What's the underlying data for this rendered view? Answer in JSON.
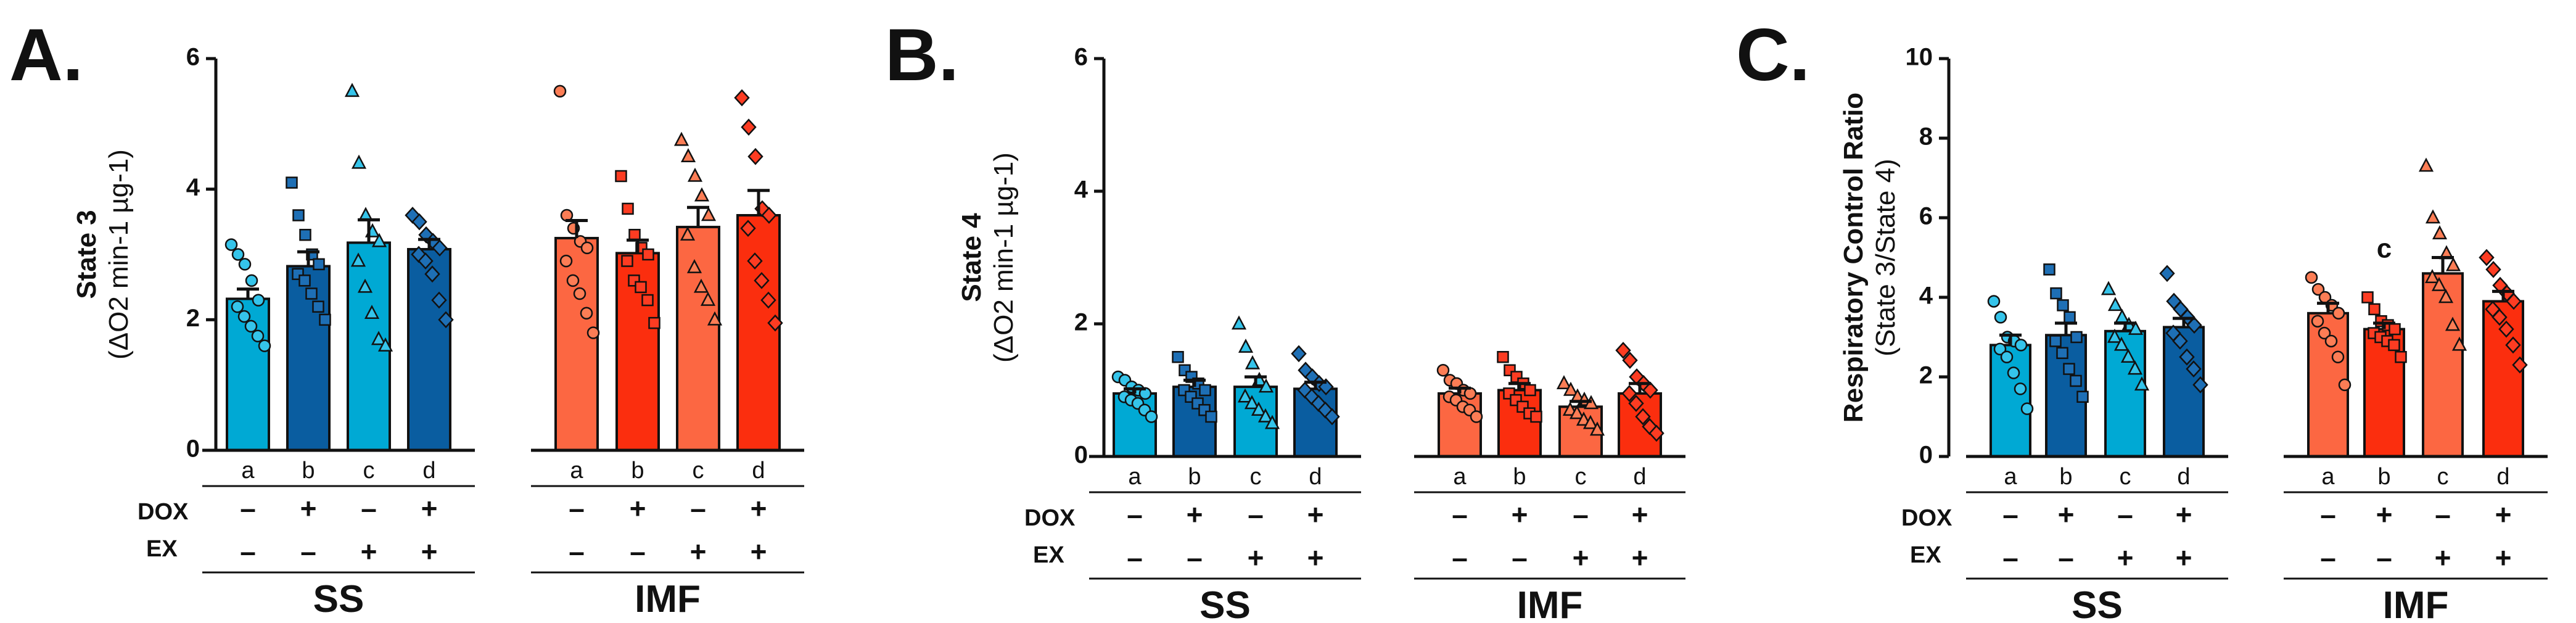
{
  "chart_data": [
    {
      "type": "bar",
      "panel_label": "A.",
      "ylabel": "State 3",
      "ylabel_sub": "(ΔO2 min-1 µg-1)",
      "ylim": [
        0,
        6
      ],
      "yticks": [
        "0",
        "2",
        "4",
        "6"
      ],
      "groups": [
        {
          "name": "SS",
          "categories": [
            "a",
            "b",
            "c",
            "d"
          ],
          "means": [
            2.32,
            2.82,
            3.18,
            3.08
          ],
          "sem": [
            0.15,
            0.22,
            0.35,
            0.15
          ],
          "points": [
            [
              3.15,
              3.0,
              2.85,
              2.6,
              2.3,
              2.2,
              2.05,
              1.9,
              1.75,
              1.6
            ],
            [
              4.1,
              3.6,
              3.3,
              3.0,
              2.85,
              2.7,
              2.6,
              2.4,
              2.2,
              2.0
            ],
            [
              5.5,
              4.4,
              3.6,
              3.35,
              3.2,
              2.9,
              2.5,
              2.1,
              1.7,
              1.6
            ],
            [
              3.6,
              3.5,
              3.3,
              3.2,
              3.1,
              3.0,
              2.9,
              2.7,
              2.3,
              2.0
            ]
          ]
        },
        {
          "name": "IMF",
          "categories": [
            "a",
            "b",
            "c",
            "d"
          ],
          "means": [
            3.25,
            3.02,
            3.42,
            3.6
          ],
          "sem": [
            0.27,
            0.2,
            0.3,
            0.38
          ],
          "points": [
            [
              5.5,
              3.6,
              3.4,
              3.2,
              3.1,
              2.9,
              2.6,
              2.4,
              2.1,
              1.8
            ],
            [
              4.2,
              3.7,
              3.3,
              3.1,
              3.0,
              2.9,
              2.6,
              2.5,
              2.3,
              1.95
            ],
            [
              4.75,
              4.5,
              4.2,
              3.9,
              3.6,
              3.3,
              2.8,
              2.5,
              2.3,
              2.0
            ],
            [
              5.4,
              4.95,
              4.5,
              3.7,
              3.6,
              3.4,
              2.9,
              2.6,
              2.3,
              1.95
            ]
          ]
        }
      ]
    },
    {
      "type": "bar",
      "panel_label": "B.",
      "ylabel": "State 4",
      "ylabel_sub": "(ΔO2 min-1 µg-1)",
      "ylim": [
        0,
        6
      ],
      "yticks": [
        "0",
        "2",
        "4",
        "6"
      ],
      "groups": [
        {
          "name": "SS",
          "categories": [
            "a",
            "b",
            "c",
            "d"
          ],
          "means": [
            0.95,
            1.05,
            1.05,
            1.02
          ],
          "sem": [
            0.07,
            0.1,
            0.15,
            0.1
          ],
          "points": [
            [
              1.2,
              1.15,
              1.05,
              1.0,
              0.95,
              0.9,
              0.85,
              0.8,
              0.7,
              0.6
            ],
            [
              1.5,
              1.3,
              1.2,
              1.1,
              1.0,
              1.0,
              0.9,
              0.8,
              0.7,
              0.6
            ],
            [
              2.0,
              1.65,
              1.4,
              1.15,
              1.05,
              0.9,
              0.8,
              0.7,
              0.6,
              0.5
            ],
            [
              1.55,
              1.3,
              1.2,
              1.1,
              1.05,
              1.0,
              0.9,
              0.8,
              0.7,
              0.6
            ]
          ]
        },
        {
          "name": "IMF",
          "categories": [
            "a",
            "b",
            "c",
            "d"
          ],
          "means": [
            0.95,
            1.0,
            0.75,
            0.95
          ],
          "sem": [
            0.08,
            0.1,
            0.08,
            0.15
          ],
          "points": [
            [
              1.3,
              1.15,
              1.1,
              1.0,
              0.95,
              0.9,
              0.85,
              0.75,
              0.7,
              0.6
            ],
            [
              1.5,
              1.3,
              1.2,
              1.1,
              1.0,
              0.95,
              0.85,
              0.75,
              0.65,
              0.6
            ],
            [
              1.1,
              1.0,
              0.9,
              0.85,
              0.8,
              0.7,
              0.65,
              0.55,
              0.5,
              0.4
            ],
            [
              1.6,
              1.45,
              1.2,
              1.1,
              1.0,
              0.95,
              0.8,
              0.6,
              0.45,
              0.35
            ]
          ]
        }
      ]
    },
    {
      "type": "bar",
      "panel_label": "C.",
      "ylabel": "Respiratory Control Ratio",
      "ylabel_sub": "(State 3/State 4)",
      "ylim": [
        0,
        10
      ],
      "yticks": [
        "0",
        "2",
        "4",
        "6",
        "8",
        "10"
      ],
      "groups": [
        {
          "name": "SS",
          "categories": [
            "a",
            "b",
            "c",
            "d"
          ],
          "means": [
            2.8,
            3.05,
            3.15,
            3.25
          ],
          "sem": [
            0.25,
            0.3,
            0.2,
            0.22
          ],
          "points": [
            [
              3.9,
              3.5,
              3.0,
              2.9,
              2.8,
              2.7,
              2.5,
              2.1,
              1.7,
              1.2
            ],
            [
              4.7,
              4.1,
              3.8,
              3.5,
              3.0,
              2.9,
              2.6,
              2.2,
              1.9,
              1.5
            ],
            [
              4.2,
              3.8,
              3.5,
              3.3,
              3.2,
              3.0,
              2.8,
              2.5,
              2.2,
              1.8
            ],
            [
              4.6,
              3.9,
              3.7,
              3.5,
              3.3,
              3.1,
              2.9,
              2.5,
              2.2,
              1.8
            ]
          ]
        },
        {
          "name": "IMF",
          "categories": [
            "a",
            "b",
            "c",
            "d"
          ],
          "means": [
            3.6,
            3.2,
            4.6,
            3.9
          ],
          "sem": [
            0.25,
            0.15,
            0.4,
            0.25
          ],
          "points": [
            [
              4.5,
              4.2,
              4.0,
              3.8,
              3.6,
              3.4,
              3.1,
              2.9,
              2.5,
              1.8
            ],
            [
              4.0,
              3.7,
              3.4,
              3.3,
              3.2,
              3.1,
              3.0,
              2.9,
              2.8,
              2.5
            ],
            [
              7.3,
              6.0,
              5.6,
              5.1,
              4.8,
              4.5,
              4.3,
              4.0,
              3.3,
              2.8
            ],
            [
              5.0,
              4.7,
              4.3,
              4.1,
              3.9,
              3.7,
              3.5,
              3.2,
              2.8,
              2.3
            ]
          ]
        }
      ],
      "annotations": [
        {
          "group": 1,
          "category": 1,
          "text": "c",
          "y": 5.0
        }
      ]
    }
  ],
  "condition_rows": {
    "dox_label": "DOX",
    "ex_label": "EX",
    "dox": [
      "–",
      "+",
      "–",
      "+"
    ],
    "ex": [
      "–",
      "–",
      "+",
      "+"
    ]
  },
  "colors": {
    "ss_light": "#00a9d4",
    "ss_dark": "#0a5da0",
    "imf_light": "#fc6742",
    "imf_dark": "#fb2e0e",
    "ss_points": "#35c4ea",
    "ss_points_dark": "#1e6fb5",
    "imf_points": "#fc7d55",
    "imf_points_dark": "#fd3c22",
    "ink": "#111111"
  }
}
